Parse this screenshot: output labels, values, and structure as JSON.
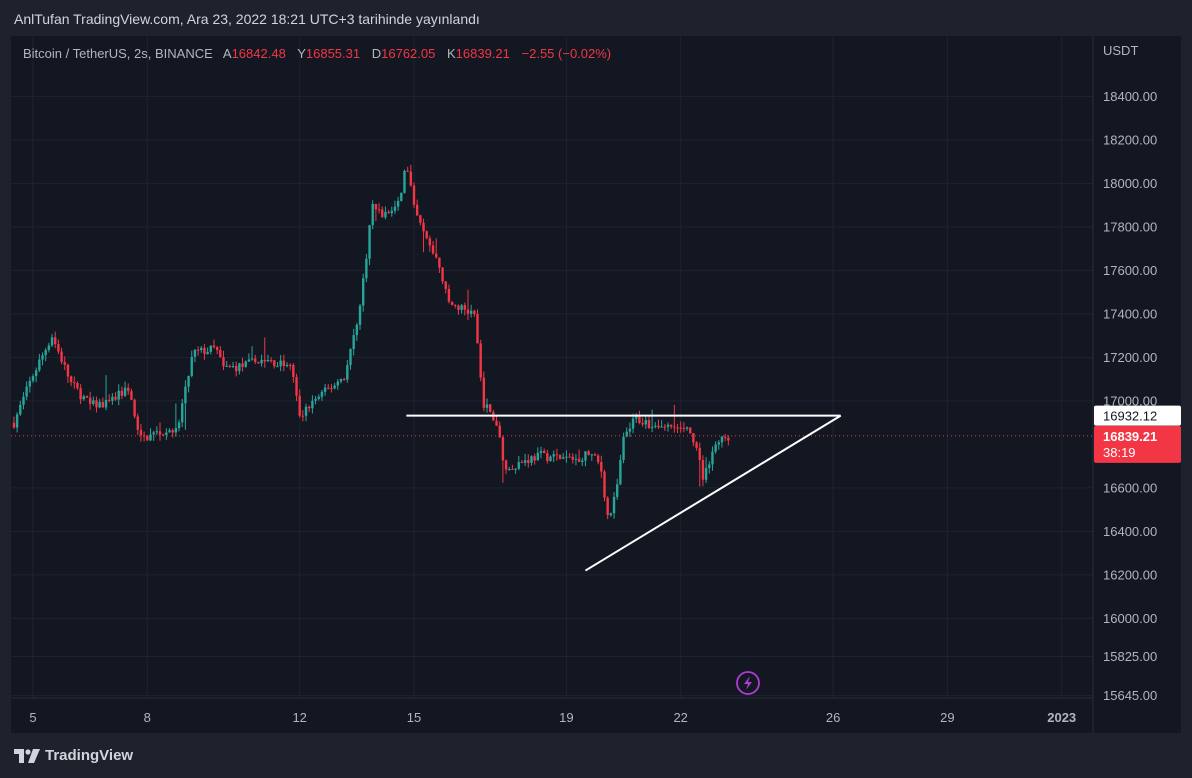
{
  "header": {
    "published_line": "AnlTufan TradingView.com, Ara 23, 2022 18:21 UTC+3 tarihinde yayınlandı"
  },
  "legend": {
    "symbol": "Bitcoin / TetherUS, 2s, BINANCE",
    "open_label": "A",
    "open": "16842.48",
    "high_label": "Y",
    "high": "16855.31",
    "low_label": "D",
    "low": "16762.05",
    "close_label": "K",
    "close": "16839.21",
    "change": "−2.55 (−0.02%)"
  },
  "footer": {
    "brand": "TradingView"
  },
  "colors": {
    "background": "#131722",
    "up": "#26a69a",
    "down": "#f23645",
    "grid": "#1f2330",
    "drawing": "#ffffff"
  },
  "icons": {
    "replay": "lightning-icon",
    "logo": "tradingview-logo-icon"
  },
  "chart_data": {
    "type": "candlestick",
    "symbol": "Bitcoin / TetherUS",
    "interval": "2s",
    "exchange": "BINANCE",
    "currency": "USDT",
    "y_ticks": [
      "18400.00",
      "18200.00",
      "18000.00",
      "17800.00",
      "17600.00",
      "17400.00",
      "17200.00",
      "17000.00",
      "16600.00",
      "16400.00",
      "16200.00",
      "16000.00",
      "15825.00",
      "15645.00"
    ],
    "x_ticks": [
      "5",
      "8",
      "12",
      "15",
      "19",
      "22",
      "26",
      "29",
      "2023"
    ],
    "x_range_days": [
      4.5,
      30.7
    ],
    "last_price": "16839.21",
    "countdown": "38:19",
    "horizontal_level": "16932.12",
    "drawings": [
      {
        "name": "resistance-line",
        "type": "horizontal",
        "from_day": 14.8,
        "to_day": 26.2,
        "price": 16932.12
      },
      {
        "name": "ascending-trendline",
        "type": "trend",
        "from": [
          19.5,
          16220
        ],
        "to": [
          26.2,
          16932.12
        ]
      }
    ],
    "anchors": [
      [
        4.5,
        16900
      ],
      [
        5.0,
        17120
      ],
      [
        5.5,
        17300
      ],
      [
        6.0,
        17080
      ],
      [
        6.5,
        16980
      ],
      [
        7.0,
        16990
      ],
      [
        7.5,
        17060
      ],
      [
        7.8,
        16820
      ],
      [
        8.2,
        16850
      ],
      [
        8.8,
        16880
      ],
      [
        9.2,
        17220
      ],
      [
        9.8,
        17240
      ],
      [
        10.0,
        17150
      ],
      [
        10.5,
        17160
      ],
      [
        11.0,
        17190
      ],
      [
        11.5,
        17170
      ],
      [
        11.8,
        17150
      ],
      [
        12.0,
        16920
      ],
      [
        12.3,
        16990
      ],
      [
        12.8,
        17060
      ],
      [
        13.2,
        17120
      ],
      [
        13.6,
        17450
      ],
      [
        13.9,
        17900
      ],
      [
        14.2,
        17850
      ],
      [
        14.6,
        17900
      ],
      [
        14.8,
        18100
      ],
      [
        15.0,
        17880
      ],
      [
        15.3,
        17750
      ],
      [
        15.7,
        17600
      ],
      [
        15.9,
        17450
      ],
      [
        16.3,
        17420
      ],
      [
        16.6,
        17380
      ],
      [
        16.8,
        17000
      ],
      [
        17.2,
        16880
      ],
      [
        17.4,
        16680
      ],
      [
        17.8,
        16720
      ],
      [
        18.3,
        16750
      ],
      [
        18.8,
        16740
      ],
      [
        19.2,
        16730
      ],
      [
        19.6,
        16760
      ],
      [
        19.9,
        16700
      ],
      [
        20.1,
        16450
      ],
      [
        20.3,
        16570
      ],
      [
        20.5,
        16820
      ],
      [
        20.8,
        16920
      ],
      [
        21.3,
        16890
      ],
      [
        21.8,
        16880
      ],
      [
        22.3,
        16850
      ],
      [
        22.6,
        16640
      ],
      [
        22.9,
        16800
      ],
      [
        23.3,
        16840
      ]
    ]
  }
}
